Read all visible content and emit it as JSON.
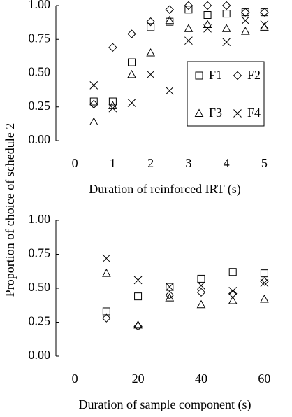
{
  "chart_data": [
    {
      "type": "scatter",
      "ylabel": "Proportion of choice of schedule 2",
      "xlabel": "Duration of reinforced IRT (s)",
      "x": [
        0.5,
        1,
        1.5,
        2,
        2.5,
        3,
        3.5,
        4,
        4.5,
        5
      ],
      "xlim": [
        -0.5,
        5.25
      ],
      "xticks": [
        0,
        1,
        2,
        3,
        4,
        5
      ],
      "ylim": [
        0,
        1
      ],
      "yticks": [
        {
          "value": 0,
          "label": "0.00"
        },
        {
          "value": 0.25,
          "label": "0.25"
        },
        {
          "value": 0.5,
          "label": "0.50"
        },
        {
          "value": 0.75,
          "label": "0.75"
        },
        {
          "value": 1,
          "label": "1.00"
        }
      ],
      "legend": "lower right",
      "series": [
        {
          "name": "F1",
          "marker": "square",
          "color": "#000000",
          "values": [
            0.29,
            0.29,
            0.58,
            0.84,
            0.88,
            0.97,
            0.93,
            0.94,
            0.95,
            0.95
          ]
        },
        {
          "name": "F2",
          "marker": "diamond",
          "color": "#000000",
          "values": [
            0.27,
            0.69,
            0.79,
            0.88,
            0.97,
            1.0,
            1.0,
            1.0,
            0.95,
            0.95
          ]
        },
        {
          "name": "F3",
          "marker": "triangle",
          "color": "#000000",
          "values": [
            0.14,
            0.26,
            0.49,
            0.65,
            0.89,
            0.83,
            0.86,
            0.83,
            0.81,
            0.84
          ]
        },
        {
          "name": "F4",
          "marker": "cross",
          "color": "#000000",
          "values": [
            0.41,
            0.24,
            0.28,
            0.49,
            0.37,
            0.74,
            0.83,
            0.73,
            0.89,
            0.86
          ]
        }
      ]
    },
    {
      "type": "scatter",
      "xlabel": "Duration of sample component (s)",
      "x": [
        10,
        20,
        30,
        40,
        50,
        60
      ],
      "xlim": [
        -6,
        63
      ],
      "xticks": [
        0,
        20,
        40,
        60
      ],
      "ylim": [
        0,
        1
      ],
      "yticks": [
        {
          "value": 0,
          "label": "0.00"
        },
        {
          "value": 0.25,
          "label": "0.25"
        },
        {
          "value": 0.5,
          "label": "0.50"
        },
        {
          "value": 0.75,
          "label": "0.75"
        },
        {
          "value": 1,
          "label": "1.00"
        }
      ],
      "series": [
        {
          "marker": "square",
          "color": "#000000",
          "values": [
            0.33,
            0.44,
            0.51,
            0.57,
            0.62,
            0.61
          ]
        },
        {
          "marker": "diamond",
          "color": "#000000",
          "values": [
            0.28,
            0.22,
            0.45,
            0.47,
            0.46,
            0.55
          ]
        },
        {
          "marker": "triangle",
          "color": "#000000",
          "values": [
            0.61,
            0.23,
            0.43,
            0.38,
            0.41,
            0.42
          ]
        },
        {
          "marker": "cross",
          "color": "#000000",
          "values": [
            0.72,
            0.56,
            0.51,
            0.52,
            0.48,
            0.54
          ]
        }
      ]
    }
  ]
}
